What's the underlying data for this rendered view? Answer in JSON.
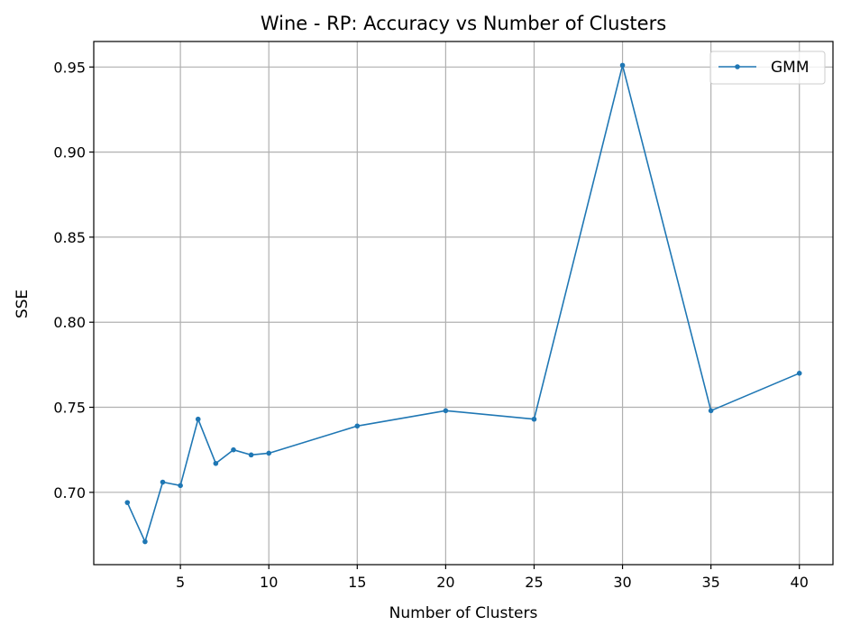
{
  "chart_data": {
    "type": "line",
    "title": "Wine - RP: Accuracy vs Number of Clusters",
    "xlabel": "Number of Clusters",
    "ylabel": "SSE",
    "xlim": [
      0.1,
      41.9
    ],
    "ylim": [
      0.6575,
      0.965
    ],
    "xticks": [
      5,
      10,
      15,
      20,
      25,
      30,
      35,
      40
    ],
    "yticks": [
      0.7,
      0.75,
      0.8,
      0.85,
      0.9,
      0.95
    ],
    "ytick_labels": [
      "0.70",
      "0.75",
      "0.80",
      "0.85",
      "0.90",
      "0.95"
    ],
    "grid": true,
    "legend_position": "top-right",
    "series": [
      {
        "name": "GMM",
        "color": "#1f77b4",
        "marker": "dot",
        "x": [
          2,
          3,
          4,
          5,
          6,
          7,
          8,
          9,
          10,
          15,
          20,
          25,
          30,
          35,
          40
        ],
        "y": [
          0.694,
          0.671,
          0.706,
          0.704,
          0.743,
          0.717,
          0.725,
          0.722,
          0.723,
          0.739,
          0.748,
          0.743,
          0.951,
          0.748,
          0.77
        ]
      }
    ]
  }
}
